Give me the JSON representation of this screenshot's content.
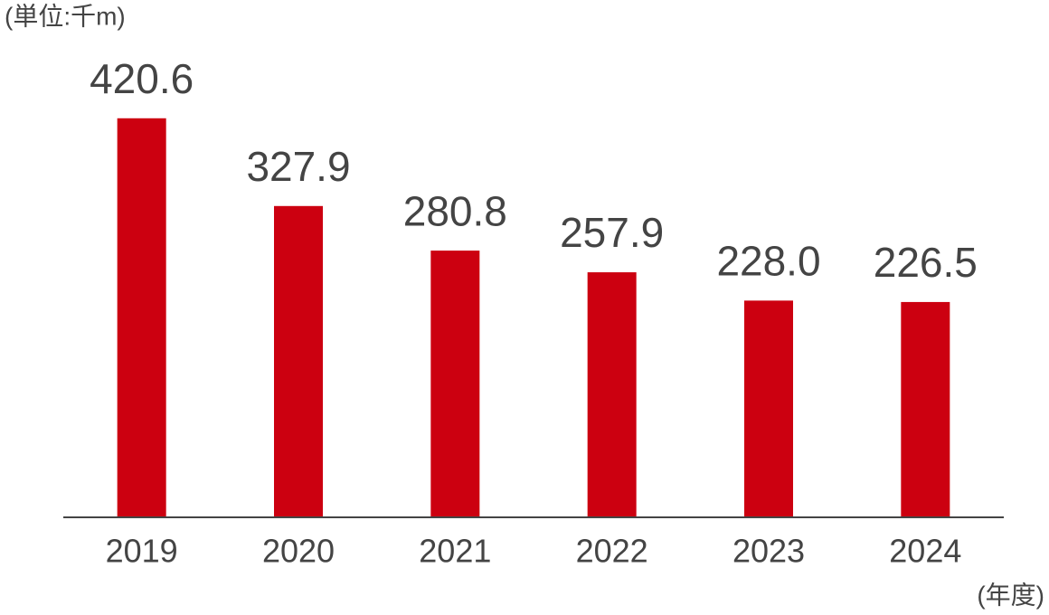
{
  "chart_data": {
    "type": "bar",
    "y_unit": "(単位:千m)",
    "x_unit": "(年度)",
    "categories": [
      "2019",
      "2020",
      "2021",
      "2022",
      "2023",
      "2024"
    ],
    "values": [
      420.6,
      327.9,
      280.8,
      257.9,
      228.0,
      226.5
    ],
    "value_labels": [
      "420.6",
      "327.9",
      "280.8",
      "257.9",
      "228.0",
      "226.5"
    ],
    "color": "#cc0010",
    "ylim": [
      0,
      450
    ]
  }
}
